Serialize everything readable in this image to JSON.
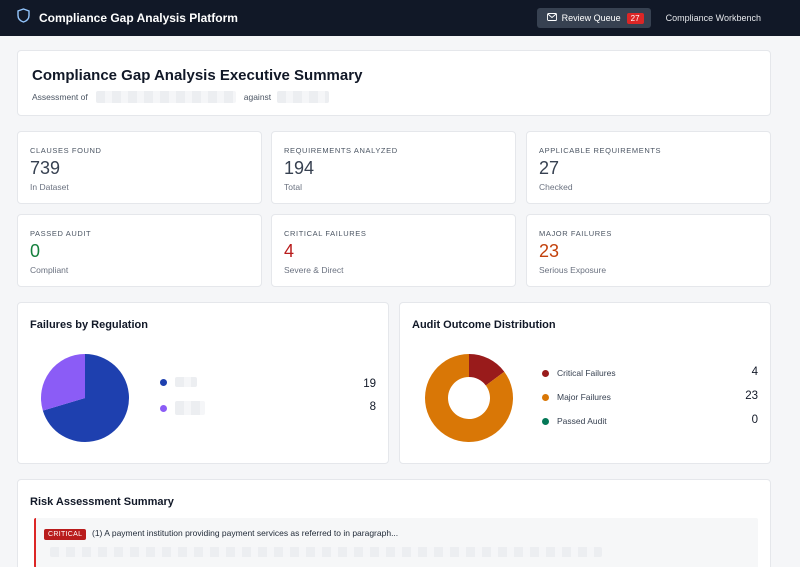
{
  "app": {
    "title": "Compliance Gap Analysis Platform",
    "review_queue_label": "Review Queue",
    "review_queue_count": "27",
    "workbench_label": "Compliance Workbench"
  },
  "summary": {
    "title": "Compliance Gap Analysis Executive Summary",
    "assessment_prefix": "Assessment of",
    "assessment_middle": "against"
  },
  "stats": {
    "clauses": {
      "label": "CLAUSES FOUND",
      "value": "739",
      "sub": "In Dataset"
    },
    "requirements": {
      "label": "REQUIREMENTS ANALYZED",
      "value": "194",
      "sub": "Total"
    },
    "applicable": {
      "label": "APPLICABLE REQUIREMENTS",
      "value": "27",
      "sub": "Checked"
    },
    "passed": {
      "label": "PASSED AUDIT",
      "value": "0",
      "sub": "Compliant"
    },
    "critical": {
      "label": "CRITICAL FAILURES",
      "value": "4",
      "sub": "Severe & Direct"
    },
    "major": {
      "label": "MAJOR FAILURES",
      "value": "23",
      "sub": "Serious Exposure"
    }
  },
  "colors": {
    "passed": "#15803d",
    "critical": "#b91c1c",
    "major": "#c2410c",
    "donut_critical": "#991b1b",
    "donut_major": "#d97706",
    "donut_passed": "#047857",
    "pie_blue": "#1e40af",
    "pie_purple": "#8b5cf6"
  },
  "failures_by_regulation": {
    "title": "Failures by Regulation",
    "items": [
      {
        "value": "19",
        "color": "#1e40af"
      },
      {
        "value": "8",
        "color": "#8b5cf6"
      }
    ]
  },
  "audit_outcome": {
    "title": "Audit Outcome Distribution",
    "items": [
      {
        "label": "Critical Failures",
        "value": "4",
        "color": "#991b1b"
      },
      {
        "label": "Major Failures",
        "value": "23",
        "color": "#d97706"
      },
      {
        "label": "Passed Audit",
        "value": "0",
        "color": "#047857"
      }
    ]
  },
  "risk": {
    "title": "Risk Assessment Summary",
    "items": [
      {
        "tag": "CRITICAL",
        "text": "(1) A payment institution providing payment services as referred to in paragraph..."
      }
    ]
  }
}
